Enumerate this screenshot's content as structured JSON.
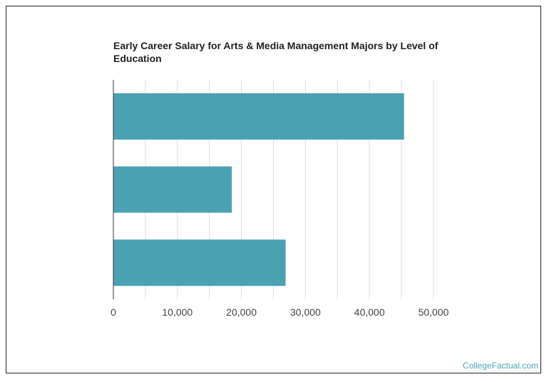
{
  "chart_data": {
    "type": "bar",
    "orientation": "horizontal",
    "title": "Early Career Salary for Arts & Media Management Majors by Level of Education",
    "xlabel": "",
    "ylabel": "",
    "categories": [
      "",
      "",
      ""
    ],
    "values": [
      45400,
      18500,
      26900
    ],
    "xlim": [
      0,
      50000
    ],
    "x_ticks": [
      0,
      10000,
      20000,
      30000,
      40000,
      50000
    ],
    "x_tick_labels": [
      "0",
      "10,000",
      "20,000",
      "30,000",
      "40,000",
      "50,000"
    ],
    "grid": true,
    "legend": "none",
    "bar_color": "#4aa1b2",
    "grid_color": "#dddddd"
  },
  "watermark": "CollegeFactual.com"
}
